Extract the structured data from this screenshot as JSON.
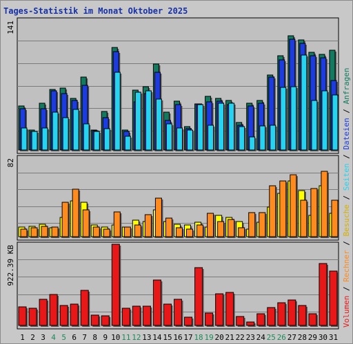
{
  "page": {
    "title": "Tages-Statistik im Monat Oktober 2025",
    "background": "#c8c8c8",
    "title_color": "#1530a8"
  },
  "legend": {
    "requests": "Anfragen",
    "files": "Dateien",
    "pages": "Seiten",
    "visits": "Besuche",
    "sites": "Rechner",
    "volume": "Volumen",
    "separator": " / "
  },
  "chart_data": [
    {
      "type": "bar",
      "title": "Tages-Statistik im Monat Oktober 2025",
      "panel": "top",
      "y_max_label": "141",
      "ylim": [
        0,
        141
      ],
      "categories": [
        "1",
        "2",
        "3",
        "4",
        "5",
        "6",
        "7",
        "8",
        "9",
        "10",
        "11",
        "12",
        "13",
        "14",
        "15",
        "16",
        "17",
        "18",
        "19",
        "20",
        "21",
        "22",
        "23",
        "24",
        "25",
        "26",
        "27",
        "28",
        "29",
        "30",
        "31"
      ],
      "weekend_days": [
        "4",
        "5",
        "11",
        "12",
        "18",
        "19",
        "25",
        "26"
      ],
      "series": [
        {
          "name": "Anfragen",
          "color": "#127a5e",
          "values": [
            48,
            22,
            51,
            66,
            67,
            56,
            79,
            22,
            42,
            111,
            22,
            65,
            69,
            93,
            41,
            53,
            25,
            50,
            58,
            56,
            54,
            30,
            51,
            54,
            81,
            102,
            124,
            119,
            106,
            104,
            108
          ]
        },
        {
          "name": "Dateien",
          "color": "#1d3ce0",
          "values": [
            45,
            20,
            45,
            64,
            61,
            54,
            70,
            21,
            35,
            107,
            20,
            52,
            61,
            84,
            32,
            49,
            23,
            50,
            52,
            53,
            49,
            27,
            48,
            51,
            79,
            98,
            120,
            116,
            102,
            100,
            75
          ]
        },
        {
          "name": "Seiten",
          "color": "#26d3f0",
          "values": [
            24,
            20,
            24,
            41,
            35,
            44,
            28,
            20,
            23,
            84,
            15,
            63,
            64,
            55,
            28,
            24,
            22,
            49,
            27,
            51,
            51,
            25,
            14,
            26,
            27,
            68,
            69,
            103,
            54,
            64,
            60
          ]
        }
      ]
    },
    {
      "type": "bar",
      "panel": "middle",
      "y_max_label": "82",
      "ylim": [
        0,
        82
      ],
      "categories": [
        "1",
        "2",
        "3",
        "4",
        "5",
        "6",
        "7",
        "8",
        "9",
        "10",
        "11",
        "12",
        "13",
        "14",
        "15",
        "16",
        "17",
        "18",
        "19",
        "20",
        "21",
        "22",
        "23",
        "24",
        "25",
        "26",
        "27",
        "28",
        "29",
        "30",
        "31"
      ],
      "series": [
        {
          "name": "Besuche",
          "color": "#ffff00",
          "values": [
            10,
            11,
            13,
            9,
            20,
            37,
            36,
            12,
            10,
            12,
            10,
            17,
            16,
            28,
            16,
            13,
            12,
            15,
            10,
            22,
            20,
            16,
            8,
            15,
            31,
            45,
            58,
            48,
            22,
            53,
            24
          ]
        },
        {
          "name": "Rechner",
          "color": "#ff8a1e",
          "values": [
            8,
            9,
            11,
            10,
            36,
            49,
            28,
            10,
            8,
            26,
            10,
            12,
            23,
            40,
            19,
            9,
            8,
            12,
            24,
            16,
            18,
            9,
            25,
            25,
            53,
            58,
            64,
            38,
            50,
            68,
            38
          ]
        }
      ]
    },
    {
      "type": "bar",
      "panel": "bottom",
      "y_max_label": "922.39 KB",
      "ylim": [
        0,
        922.39
      ],
      "categories": [
        "1",
        "2",
        "3",
        "4",
        "5",
        "6",
        "7",
        "8",
        "9",
        "10",
        "11",
        "12",
        "13",
        "14",
        "15",
        "16",
        "17",
        "18",
        "19",
        "20",
        "21",
        "22",
        "23",
        "24",
        "25",
        "26",
        "27",
        "28",
        "29",
        "30",
        "31"
      ],
      "series": [
        {
          "name": "Volumen",
          "color": "#e81818",
          "values": [
            212,
            197,
            300,
            351,
            228,
            243,
            398,
            114,
            106,
            922,
            197,
            220,
            215,
            516,
            243,
            297,
            91,
            660,
            144,
            357,
            372,
            98,
            36,
            129,
            205,
            258,
            288,
            228,
            136,
            706,
            615
          ]
        }
      ]
    }
  ]
}
